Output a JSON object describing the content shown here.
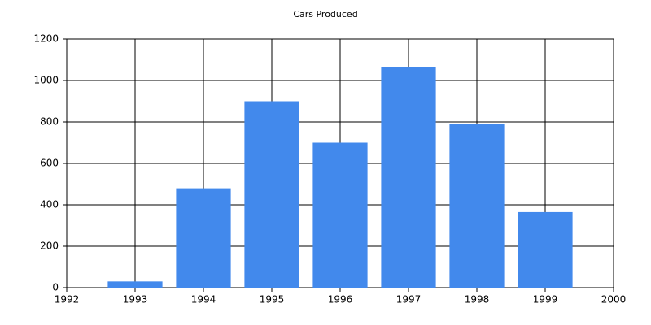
{
  "chart_data": {
    "type": "bar",
    "title": "Cars Produced",
    "x": [
      1993,
      1994,
      1995,
      1996,
      1997,
      1998,
      1999
    ],
    "values": [
      30,
      480,
      900,
      700,
      1065,
      790,
      365
    ],
    "color": "#4289ec",
    "xlim": [
      1992,
      2000
    ],
    "xticks": [
      1992,
      1993,
      1994,
      1995,
      1996,
      1997,
      1998,
      1999,
      2000
    ],
    "ylim": [
      0,
      1200
    ],
    "yticks": [
      0,
      200,
      400,
      600,
      800,
      1000,
      1200
    ],
    "grid": true
  }
}
